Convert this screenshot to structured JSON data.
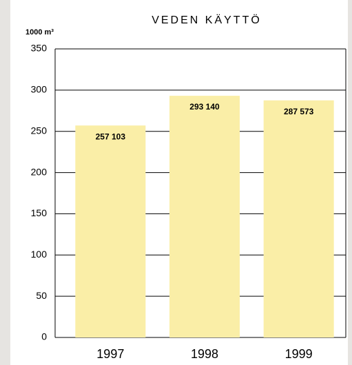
{
  "chart_data": {
    "type": "bar",
    "title": "VEDEN KÄYTTÖ",
    "y_label": "1000 m³",
    "categories": [
      "1997",
      "1998",
      "1999"
    ],
    "values": [
      257.103,
      293.14,
      287.573
    ],
    "value_labels": [
      "257 103",
      "293 140",
      "287 573"
    ],
    "color": "#faeea7",
    "ylim": [
      0,
      350
    ],
    "yticks": [
      0,
      50,
      100,
      150,
      200,
      250,
      300,
      350
    ],
    "grid": true
  }
}
